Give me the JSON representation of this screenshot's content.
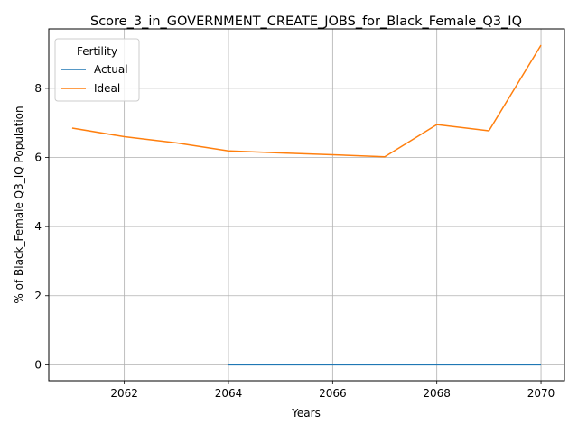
{
  "chart_data": {
    "type": "line",
    "title": "Score_3_in_GOVERNMENT_CREATE_JOBS_for_Black_Female_Q3_IQ",
    "xlabel": "Years",
    "ylabel": "% of Black_Female Q3_IQ Population",
    "xlim": [
      2060.55,
      2070.45
    ],
    "ylim": [
      -0.46,
      9.72
    ],
    "xticks": [
      2062,
      2064,
      2066,
      2068,
      2070
    ],
    "yticks": [
      0,
      2,
      4,
      6,
      8
    ],
    "grid": true,
    "legend": {
      "title": "Fertility",
      "placement": "top-left"
    },
    "series": [
      {
        "name": "Actual",
        "color": "#1f77b4",
        "x": [
          2064,
          2065,
          2066,
          2067,
          2068,
          2069,
          2070
        ],
        "y": [
          0,
          0,
          0,
          0,
          0,
          0,
          0
        ]
      },
      {
        "name": "Ideal",
        "color": "#ff7f0e",
        "x": [
          2061,
          2062,
          2063,
          2064,
          2065,
          2066,
          2067,
          2068,
          2069,
          2070
        ],
        "y": [
          6.85,
          6.6,
          6.42,
          6.19,
          6.13,
          6.08,
          6.02,
          6.95,
          6.77,
          9.25
        ]
      }
    ]
  }
}
